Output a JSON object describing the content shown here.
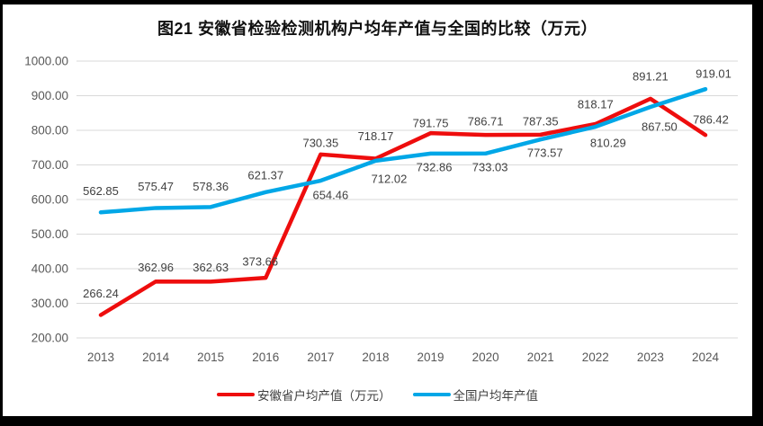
{
  "title": "图21 安徽省检验检测机构户均年产值与全国的比较（万元）",
  "chart_data": {
    "type": "line",
    "x": [
      "2013",
      "2014",
      "2015",
      "2016",
      "2017",
      "2018",
      "2019",
      "2020",
      "2021",
      "2022",
      "2023",
      "2024"
    ],
    "series": [
      {
        "name": "安徽省户均产值（万元）",
        "color": "#ee0d0d",
        "values": [
          266.24,
          362.96,
          362.63,
          373.66,
          730.35,
          718.17,
          791.75,
          786.71,
          787.35,
          818.17,
          891.21,
          786.42
        ],
        "labels": [
          "266.24",
          "362.96",
          "362.63",
          "373.66",
          "730.35",
          "718.17",
          "791.75",
          "786.71",
          "787.35",
          "818.17",
          "891.21",
          "786.42"
        ],
        "label_dx": [
          0,
          0,
          0,
          -6,
          0,
          0,
          0,
          0,
          0,
          0,
          0,
          6
        ],
        "label_dy": [
          -24,
          -16,
          -16,
          -18,
          -13,
          -25,
          -11,
          -15,
          -15,
          -22,
          -25,
          -17
        ]
      },
      {
        "name": "全国户均年产值",
        "color": "#00a7e7",
        "values": [
          562.85,
          575.47,
          578.36,
          621.37,
          654.46,
          712.02,
          732.86,
          733.03,
          773.57,
          810.29,
          867.5,
          919.01
        ],
        "labels": [
          "562.85",
          "575.47",
          "578.36",
          "621.37",
          "654.46",
          "712.02",
          "732.86",
          "733.03",
          "773.57",
          "810.29",
          "867.50",
          "919.01"
        ],
        "label_dx": [
          0,
          0,
          0,
          0,
          11,
          15,
          4,
          5,
          5,
          14,
          10,
          9
        ],
        "label_dy": [
          -24,
          -24,
          -23,
          -19,
          16,
          20,
          15,
          15,
          15,
          18,
          22,
          -17
        ]
      }
    ],
    "ylim": [
      200,
      1000
    ],
    "y_tick_step": 100,
    "y_ticks": [
      "1000.00",
      "900.00",
      "800.00",
      "700.00",
      "600.00",
      "500.00",
      "400.00",
      "300.00",
      "200.00"
    ],
    "xlabel": "",
    "ylabel": "",
    "grid": "horizontal",
    "gridline_color": "#d9d9d9",
    "data_labels": true,
    "legend_position": "bottom"
  },
  "legend": {
    "items": [
      {
        "label": "安徽省户均产值（万元）",
        "color": "#ee0d0d"
      },
      {
        "label": "全国户均年产值",
        "color": "#00a7e7"
      }
    ]
  }
}
